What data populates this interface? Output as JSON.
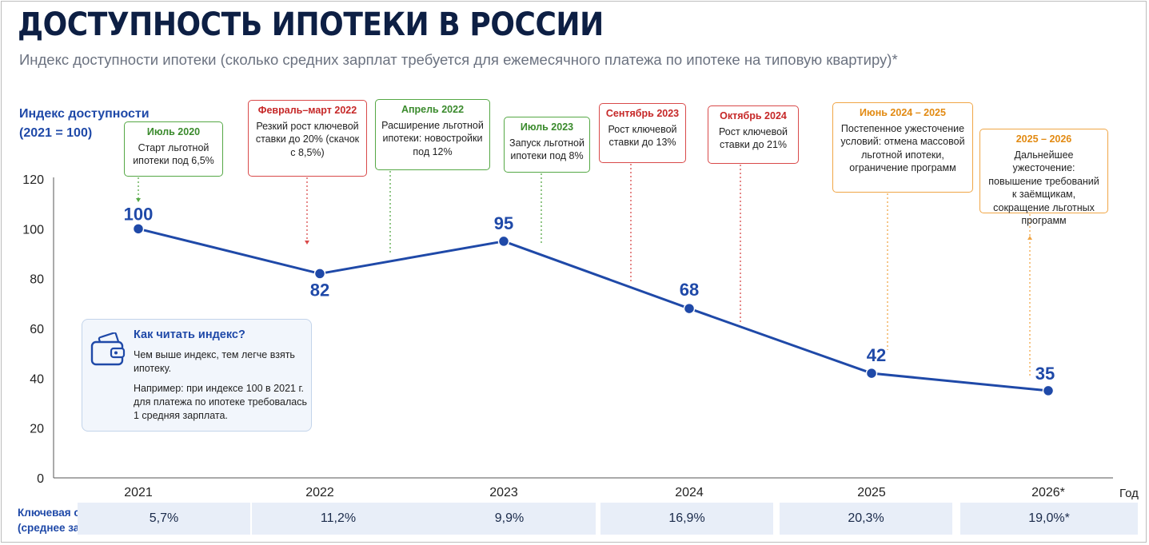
{
  "title": "ДОСТУПНОСТЬ ИПОТЕКИ В РОССИИ",
  "subtitle": "Индекс доступности ипотеки (сколько средних зарплат требуется для ежемесячного платежа по ипотеке на типовую квартиру)*",
  "colors": {
    "title": "#0d1f44",
    "accent": "#1f49a8",
    "green": "#55a845",
    "red": "#d94a4a",
    "orange": "#f0a646",
    "rate_bg": "#e8eef8"
  },
  "chart_data": {
    "type": "line",
    "ylabel_line1": "Индекс доступности",
    "ylabel_line2": "(2021 = 100)",
    "xlabel": "Год",
    "categories": [
      "2021",
      "2022",
      "2023",
      "2024",
      "2025",
      "2026*"
    ],
    "values": [
      100,
      82,
      95,
      68,
      42,
      35
    ],
    "ylim": [
      0,
      120
    ],
    "yticks": [
      0,
      20,
      40,
      60,
      80,
      100,
      120
    ],
    "grid": false,
    "annotations": [
      {
        "id": "jul2020",
        "color": "green",
        "head": "Июль 2020",
        "text": "Старт льготной ипотеки под 6,5%"
      },
      {
        "id": "febmar2022",
        "color": "red",
        "head": "Февраль–март 2022",
        "text": "Резкий рост ключевой ставки до 20% (скачок с 8,5%)"
      },
      {
        "id": "apr2022",
        "color": "green",
        "head": "Апрель 2022",
        "text": "Расширение льготной ипотеки: новостройки под 12%"
      },
      {
        "id": "jul2023",
        "color": "green",
        "head": "Июль 2023",
        "text": "Запуск льготной ипотеки под 8%"
      },
      {
        "id": "sep2023",
        "color": "red",
        "head": "Сентябрь 2023",
        "text": "Рост ключевой ставки до 13%"
      },
      {
        "id": "oct2024",
        "color": "red",
        "head": "Октябрь 2024",
        "text": "Рост ключевой ставки до 21%"
      },
      {
        "id": "jun2024_2025",
        "color": "orange",
        "head": "Июнь 2024 – 2025",
        "text": "Постепенное ужесточение условий: отмена массовой льготной ипотеки, ограничение программ"
      },
      {
        "id": "y2025_2026",
        "color": "orange",
        "head": "2025 – 2026",
        "text": "Дальнейшее ужесточение: повышение требований к заёмщикам, сокращение льготных программ"
      }
    ]
  },
  "info": {
    "title": "Как читать индекс?",
    "p1": "Чем выше индекс, тем легче взять ипотеку.",
    "p2": "Например: при индексе 100 в 2021 г. для платежа по ипотеке требовалась 1 средняя зарплата.",
    "icon": "wallet-icon"
  },
  "rates": {
    "label_line1": "Ключевая ставка ЦБ",
    "label_line2": "(среднее за год)",
    "values": [
      "5,7%",
      "11,2%",
      "9,9%",
      "16,9%",
      "20,3%",
      "19,0%*"
    ]
  }
}
